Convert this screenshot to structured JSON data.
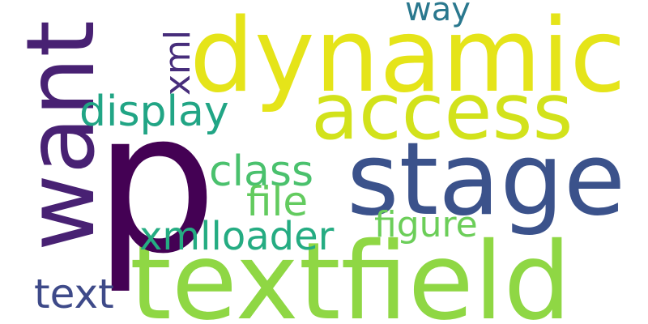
{
  "words": [
    {
      "text": "dynamic",
      "color": "#e5e419"
    },
    {
      "text": "access",
      "color": "#d2e21b"
    },
    {
      "text": "stage",
      "color": "#3b528b"
    },
    {
      "text": "textfield",
      "color": "#8fd744"
    },
    {
      "text": "p",
      "color": "#440154"
    },
    {
      "text": "want",
      "color": "#482173"
    },
    {
      "text": "xml",
      "color": "#472d7b"
    },
    {
      "text": "display",
      "color": "#21a585"
    },
    {
      "text": "class",
      "color": "#4ac16d"
    },
    {
      "text": "file",
      "color": "#63cb5f"
    },
    {
      "text": "xmlloader",
      "color": "#25ac82"
    },
    {
      "text": "figure",
      "color": "#6cce59"
    },
    {
      "text": "way",
      "color": "#2a788e"
    },
    {
      "text": "text",
      "color": "#3e4a89"
    }
  ]
}
